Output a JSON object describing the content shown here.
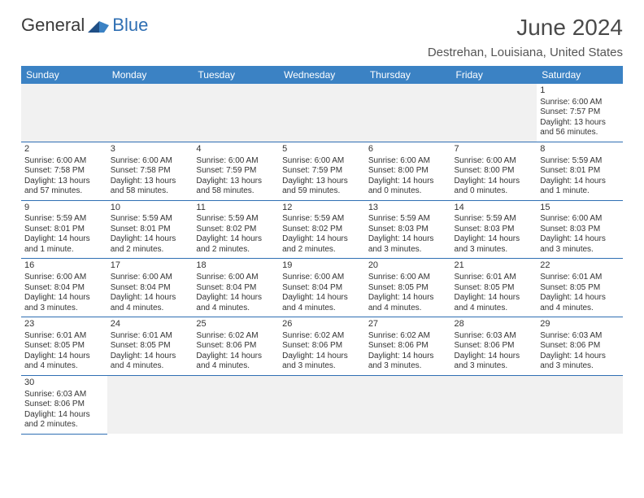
{
  "brand": {
    "part1": "General",
    "part2": "Blue"
  },
  "title": "June 2024",
  "location": "Destrehan, Louisiana, United States",
  "colors": {
    "header_bg": "#3b82c4",
    "rule": "#2f6fb3",
    "text": "#333333"
  },
  "day_headers": [
    "Sunday",
    "Monday",
    "Tuesday",
    "Wednesday",
    "Thursday",
    "Friday",
    "Saturday"
  ],
  "weeks": [
    [
      null,
      null,
      null,
      null,
      null,
      null,
      {
        "n": "1",
        "sr": "Sunrise: 6:00 AM",
        "ss": "Sunset: 7:57 PM",
        "dl": "Daylight: 13 hours and 56 minutes."
      }
    ],
    [
      {
        "n": "2",
        "sr": "Sunrise: 6:00 AM",
        "ss": "Sunset: 7:58 PM",
        "dl": "Daylight: 13 hours and 57 minutes."
      },
      {
        "n": "3",
        "sr": "Sunrise: 6:00 AM",
        "ss": "Sunset: 7:58 PM",
        "dl": "Daylight: 13 hours and 58 minutes."
      },
      {
        "n": "4",
        "sr": "Sunrise: 6:00 AM",
        "ss": "Sunset: 7:59 PM",
        "dl": "Daylight: 13 hours and 58 minutes."
      },
      {
        "n": "5",
        "sr": "Sunrise: 6:00 AM",
        "ss": "Sunset: 7:59 PM",
        "dl": "Daylight: 13 hours and 59 minutes."
      },
      {
        "n": "6",
        "sr": "Sunrise: 6:00 AM",
        "ss": "Sunset: 8:00 PM",
        "dl": "Daylight: 14 hours and 0 minutes."
      },
      {
        "n": "7",
        "sr": "Sunrise: 6:00 AM",
        "ss": "Sunset: 8:00 PM",
        "dl": "Daylight: 14 hours and 0 minutes."
      },
      {
        "n": "8",
        "sr": "Sunrise: 5:59 AM",
        "ss": "Sunset: 8:01 PM",
        "dl": "Daylight: 14 hours and 1 minute."
      }
    ],
    [
      {
        "n": "9",
        "sr": "Sunrise: 5:59 AM",
        "ss": "Sunset: 8:01 PM",
        "dl": "Daylight: 14 hours and 1 minute."
      },
      {
        "n": "10",
        "sr": "Sunrise: 5:59 AM",
        "ss": "Sunset: 8:01 PM",
        "dl": "Daylight: 14 hours and 2 minutes."
      },
      {
        "n": "11",
        "sr": "Sunrise: 5:59 AM",
        "ss": "Sunset: 8:02 PM",
        "dl": "Daylight: 14 hours and 2 minutes."
      },
      {
        "n": "12",
        "sr": "Sunrise: 5:59 AM",
        "ss": "Sunset: 8:02 PM",
        "dl": "Daylight: 14 hours and 2 minutes."
      },
      {
        "n": "13",
        "sr": "Sunrise: 5:59 AM",
        "ss": "Sunset: 8:03 PM",
        "dl": "Daylight: 14 hours and 3 minutes."
      },
      {
        "n": "14",
        "sr": "Sunrise: 5:59 AM",
        "ss": "Sunset: 8:03 PM",
        "dl": "Daylight: 14 hours and 3 minutes."
      },
      {
        "n": "15",
        "sr": "Sunrise: 6:00 AM",
        "ss": "Sunset: 8:03 PM",
        "dl": "Daylight: 14 hours and 3 minutes."
      }
    ],
    [
      {
        "n": "16",
        "sr": "Sunrise: 6:00 AM",
        "ss": "Sunset: 8:04 PM",
        "dl": "Daylight: 14 hours and 3 minutes."
      },
      {
        "n": "17",
        "sr": "Sunrise: 6:00 AM",
        "ss": "Sunset: 8:04 PM",
        "dl": "Daylight: 14 hours and 4 minutes."
      },
      {
        "n": "18",
        "sr": "Sunrise: 6:00 AM",
        "ss": "Sunset: 8:04 PM",
        "dl": "Daylight: 14 hours and 4 minutes."
      },
      {
        "n": "19",
        "sr": "Sunrise: 6:00 AM",
        "ss": "Sunset: 8:04 PM",
        "dl": "Daylight: 14 hours and 4 minutes."
      },
      {
        "n": "20",
        "sr": "Sunrise: 6:00 AM",
        "ss": "Sunset: 8:05 PM",
        "dl": "Daylight: 14 hours and 4 minutes."
      },
      {
        "n": "21",
        "sr": "Sunrise: 6:01 AM",
        "ss": "Sunset: 8:05 PM",
        "dl": "Daylight: 14 hours and 4 minutes."
      },
      {
        "n": "22",
        "sr": "Sunrise: 6:01 AM",
        "ss": "Sunset: 8:05 PM",
        "dl": "Daylight: 14 hours and 4 minutes."
      }
    ],
    [
      {
        "n": "23",
        "sr": "Sunrise: 6:01 AM",
        "ss": "Sunset: 8:05 PM",
        "dl": "Daylight: 14 hours and 4 minutes."
      },
      {
        "n": "24",
        "sr": "Sunrise: 6:01 AM",
        "ss": "Sunset: 8:05 PM",
        "dl": "Daylight: 14 hours and 4 minutes."
      },
      {
        "n": "25",
        "sr": "Sunrise: 6:02 AM",
        "ss": "Sunset: 8:06 PM",
        "dl": "Daylight: 14 hours and 4 minutes."
      },
      {
        "n": "26",
        "sr": "Sunrise: 6:02 AM",
        "ss": "Sunset: 8:06 PM",
        "dl": "Daylight: 14 hours and 3 minutes."
      },
      {
        "n": "27",
        "sr": "Sunrise: 6:02 AM",
        "ss": "Sunset: 8:06 PM",
        "dl": "Daylight: 14 hours and 3 minutes."
      },
      {
        "n": "28",
        "sr": "Sunrise: 6:03 AM",
        "ss": "Sunset: 8:06 PM",
        "dl": "Daylight: 14 hours and 3 minutes."
      },
      {
        "n": "29",
        "sr": "Sunrise: 6:03 AM",
        "ss": "Sunset: 8:06 PM",
        "dl": "Daylight: 14 hours and 3 minutes."
      }
    ],
    [
      {
        "n": "30",
        "sr": "Sunrise: 6:03 AM",
        "ss": "Sunset: 8:06 PM",
        "dl": "Daylight: 14 hours and 2 minutes."
      },
      null,
      null,
      null,
      null,
      null,
      null
    ]
  ]
}
